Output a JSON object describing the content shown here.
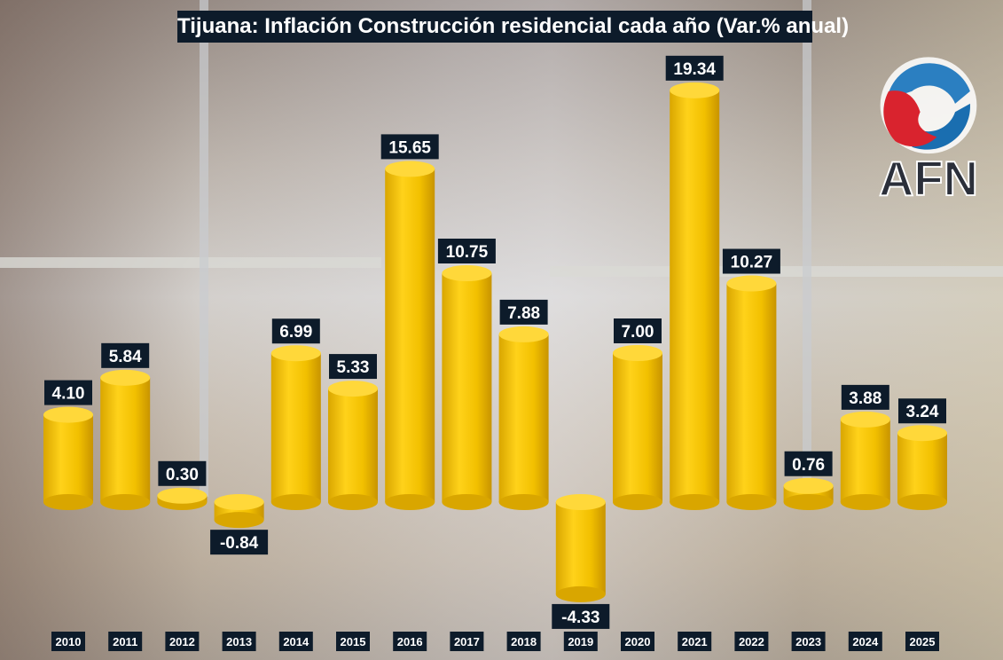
{
  "chart_data": {
    "type": "bar",
    "title": "Tijuana: Inflación Construcción residencial cada año (Var.% anual)",
    "categories": [
      "2010",
      "2011",
      "2012",
      "2013",
      "2014",
      "2015",
      "2016",
      "2017",
      "2018",
      "2019",
      "2020",
      "2021",
      "2022",
      "2023",
      "2024",
      "2025"
    ],
    "values": [
      4.1,
      5.84,
      0.3,
      -0.84,
      6.99,
      5.33,
      15.65,
      10.75,
      7.88,
      -4.33,
      7.0,
      19.34,
      10.27,
      0.76,
      3.88,
      3.24
    ],
    "xlabel": "",
    "ylabel": "",
    "ylim": [
      -5,
      20
    ],
    "grid": false,
    "bar_color": "#f5c400",
    "label_bg": "#0d1b2a"
  },
  "logo": {
    "text": "AFN"
  }
}
